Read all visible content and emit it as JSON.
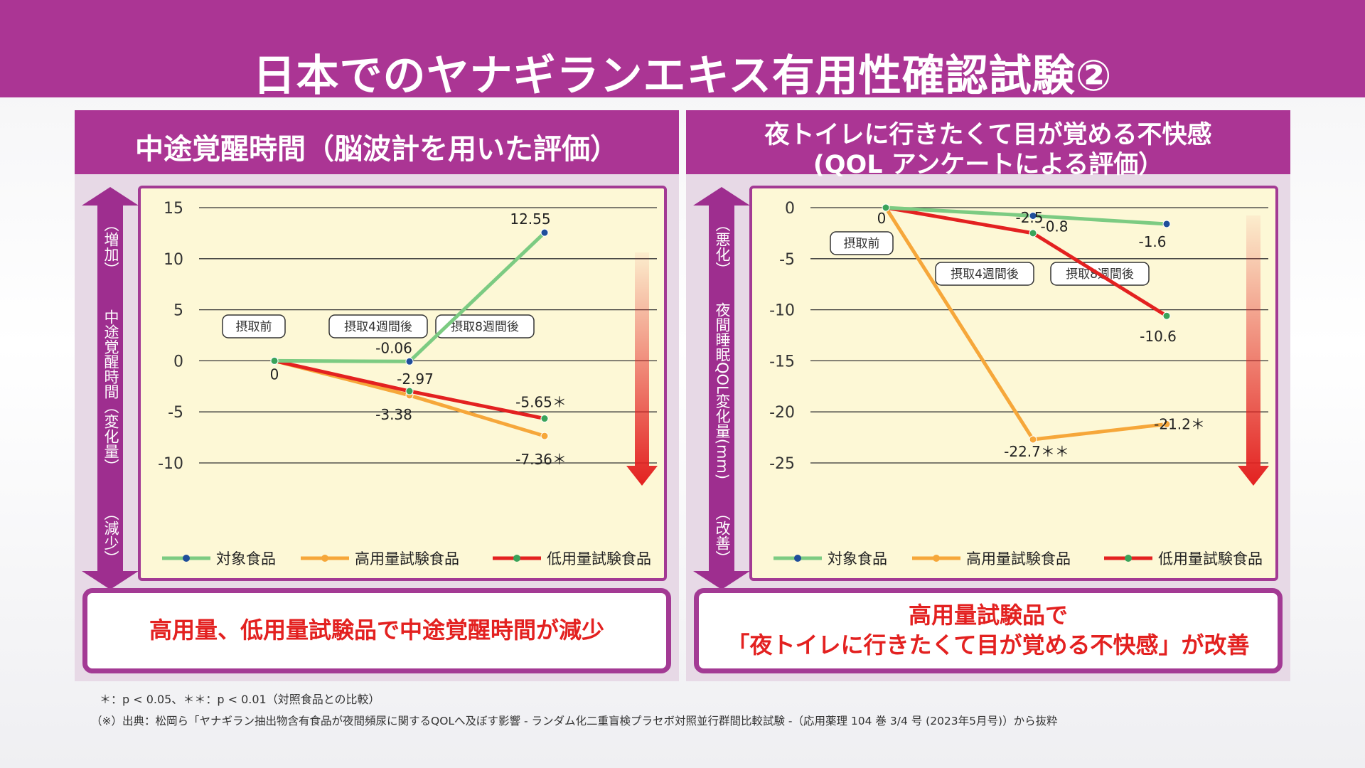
{
  "title": "日本でのヤナギランエキス有用性確認試験②",
  "colors": {
    "brand": "#ab3594",
    "control": "#7ccb82",
    "high": "#f6a73a",
    "low": "#e32120",
    "point": "#1f4e9b"
  },
  "legend": [
    "対象食品",
    "高用量試験食品",
    "低用量試験食品"
  ],
  "left": {
    "header": "中途覚醒時間（脳波計を用いた評価）",
    "side_top": "（増加）",
    "side_mid": "中途覚醒時間（変化量）",
    "side_bottom": "（減少）",
    "conclusion": "高用量、低用量試験品で中途覚醒時間が減少",
    "timepoints": [
      "摂取前",
      "摂取4週間後",
      "摂取8週間後"
    ]
  },
  "right": {
    "header_line1": "夜トイレに行きたくて目が覚める不快感",
    "header_line2": "(QOL アンケートによる評価）",
    "side_top": "（悪化）",
    "side_mid": "夜間睡眠QOL変化量(mm)",
    "side_bottom": "（改善）",
    "conclusion_line1": "高用量試験品で",
    "conclusion_line2": "「夜トイレに行きたくて目が覚める不快感」が改善",
    "timepoints": [
      "摂取前",
      "摂取4週間後",
      "摂取8週間後"
    ]
  },
  "footnote1": "＊：p < 0.05、＊＊：p < 0.01（対照食品との比較）",
  "footnote2": "（※）出典：松岡ら「ヤナギラン抽出物含有食品が夜間頻尿に関するQOLへ及ぼす影響 - ランダム化二重盲検プラセボ対照並行群間比較試験 -（応用薬理 104 巻 3/4 号 (2023年5月号)）から抜粋",
  "chart_data": [
    {
      "type": "line",
      "title": "中途覚醒時間（脳波計を用いた評価）",
      "ylabel": "中途覚醒時間（変化量）",
      "ylim": [
        -10,
        15
      ],
      "yticks": [
        15,
        10,
        5,
        0,
        -5,
        -10
      ],
      "x": [
        0,
        4,
        8
      ],
      "series": [
        {
          "name": "対象食品",
          "values": [
            0,
            -0.06,
            12.55
          ],
          "labels": [
            "0",
            "-0.06",
            "12.55"
          ]
        },
        {
          "name": "高用量試験食品",
          "values": [
            0,
            -3.38,
            -7.36
          ],
          "labels": [
            "",
            "-3.38",
            "-7.36＊"
          ]
        },
        {
          "name": "低用量試験食品",
          "values": [
            0,
            -2.97,
            -5.65
          ],
          "labels": [
            "",
            "-2.97",
            "-5.65＊"
          ]
        }
      ]
    },
    {
      "type": "line",
      "title": "夜トイレに行きたくて目が覚める不快感（QOL アンケートによる評価）",
      "ylabel": "夜間睡眠QOL変化量(mm)",
      "ylim": [
        -25,
        0
      ],
      "yticks": [
        0,
        -5,
        -10,
        -15,
        -20,
        -25
      ],
      "x": [
        0,
        4,
        8
      ],
      "series": [
        {
          "name": "対象食品",
          "values": [
            0,
            -0.8,
            -1.6
          ],
          "labels": [
            "0",
            "-0.8",
            "-1.6"
          ]
        },
        {
          "name": "高用量試験食品",
          "values": [
            0,
            -22.7,
            -21.2
          ],
          "labels": [
            "",
            "-22.7＊＊",
            "-21.2＊"
          ]
        },
        {
          "name": "低用量試験食品",
          "values": [
            0,
            -2.5,
            -10.6
          ],
          "labels": [
            "",
            "-2.5",
            "-10.6"
          ]
        }
      ]
    }
  ]
}
